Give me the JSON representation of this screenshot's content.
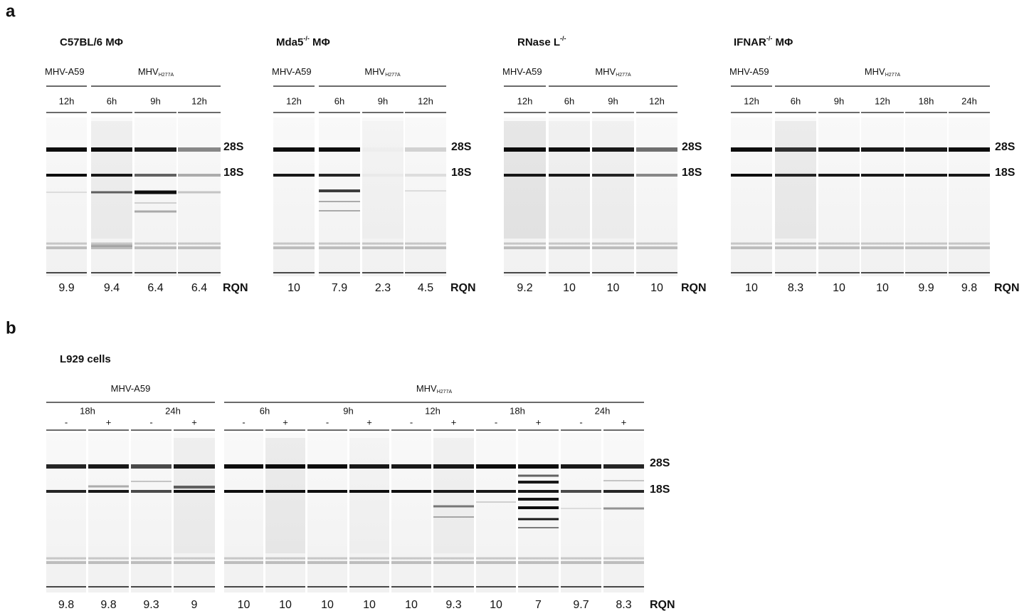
{
  "panel_a": {
    "label": "a",
    "markers": [
      "28S",
      "18S"
    ],
    "rqn_label": "RQN",
    "groups": [
      {
        "title": {
          "main": "C57BL/6 MΦ"
        },
        "virus": [
          {
            "main": "MHV-A59"
          },
          {
            "main": "MHV",
            "sub": "H277A"
          }
        ],
        "times": [
          "12h",
          "6h",
          "9h",
          "12h"
        ],
        "rqn": [
          9.9,
          9.4,
          6.4,
          6.4
        ]
      },
      {
        "title": {
          "main": "Mda5",
          "sup": "-/-",
          "rest": " MΦ"
        },
        "virus": [
          {
            "main": "MHV-A59"
          },
          {
            "main": "MHV",
            "sub": "H277A"
          }
        ],
        "times": [
          "12h",
          "6h",
          "9h",
          "12h"
        ],
        "rqn": [
          10,
          7.9,
          2.3,
          4.5
        ]
      },
      {
        "title": {
          "main": "RNase L",
          "sup": "-/-"
        },
        "virus": [
          {
            "main": "MHV-A59"
          },
          {
            "main": "MHV",
            "sub": "H277A"
          }
        ],
        "times": [
          "12h",
          "6h",
          "9h",
          "12h"
        ],
        "rqn": [
          9.2,
          10,
          10,
          10
        ]
      },
      {
        "title": {
          "main": "IFNAR",
          "sup": "-/-",
          "rest": " MΦ"
        },
        "virus": [
          {
            "main": "MHV-A59"
          },
          {
            "main": "MHV",
            "sub": "H277A"
          }
        ],
        "times": [
          "12h",
          "6h",
          "9h",
          "12h",
          "18h",
          "24h"
        ],
        "rqn": [
          10,
          8.3,
          10,
          10,
          9.9,
          9.8
        ]
      }
    ]
  },
  "panel_b": {
    "label": "b",
    "title": "L929 cells",
    "markers": [
      "28S",
      "18S"
    ],
    "rqn_label": "RQN",
    "virus": [
      {
        "main": "MHV-A59"
      },
      {
        "main": "MHV",
        "sub": "H277A"
      }
    ],
    "times": [
      "18h",
      "24h",
      "6h",
      "9h",
      "12h",
      "18h",
      "24h"
    ],
    "signs": [
      "-",
      "+",
      "-",
      "+",
      "-",
      "+",
      "-",
      "+",
      "-",
      "+",
      "-",
      "+",
      "-",
      "+"
    ],
    "rqn": [
      9.8,
      9.8,
      9.3,
      9,
      10,
      10,
      10,
      10,
      10,
      9.3,
      10,
      7,
      9.7,
      8.3
    ]
  }
}
